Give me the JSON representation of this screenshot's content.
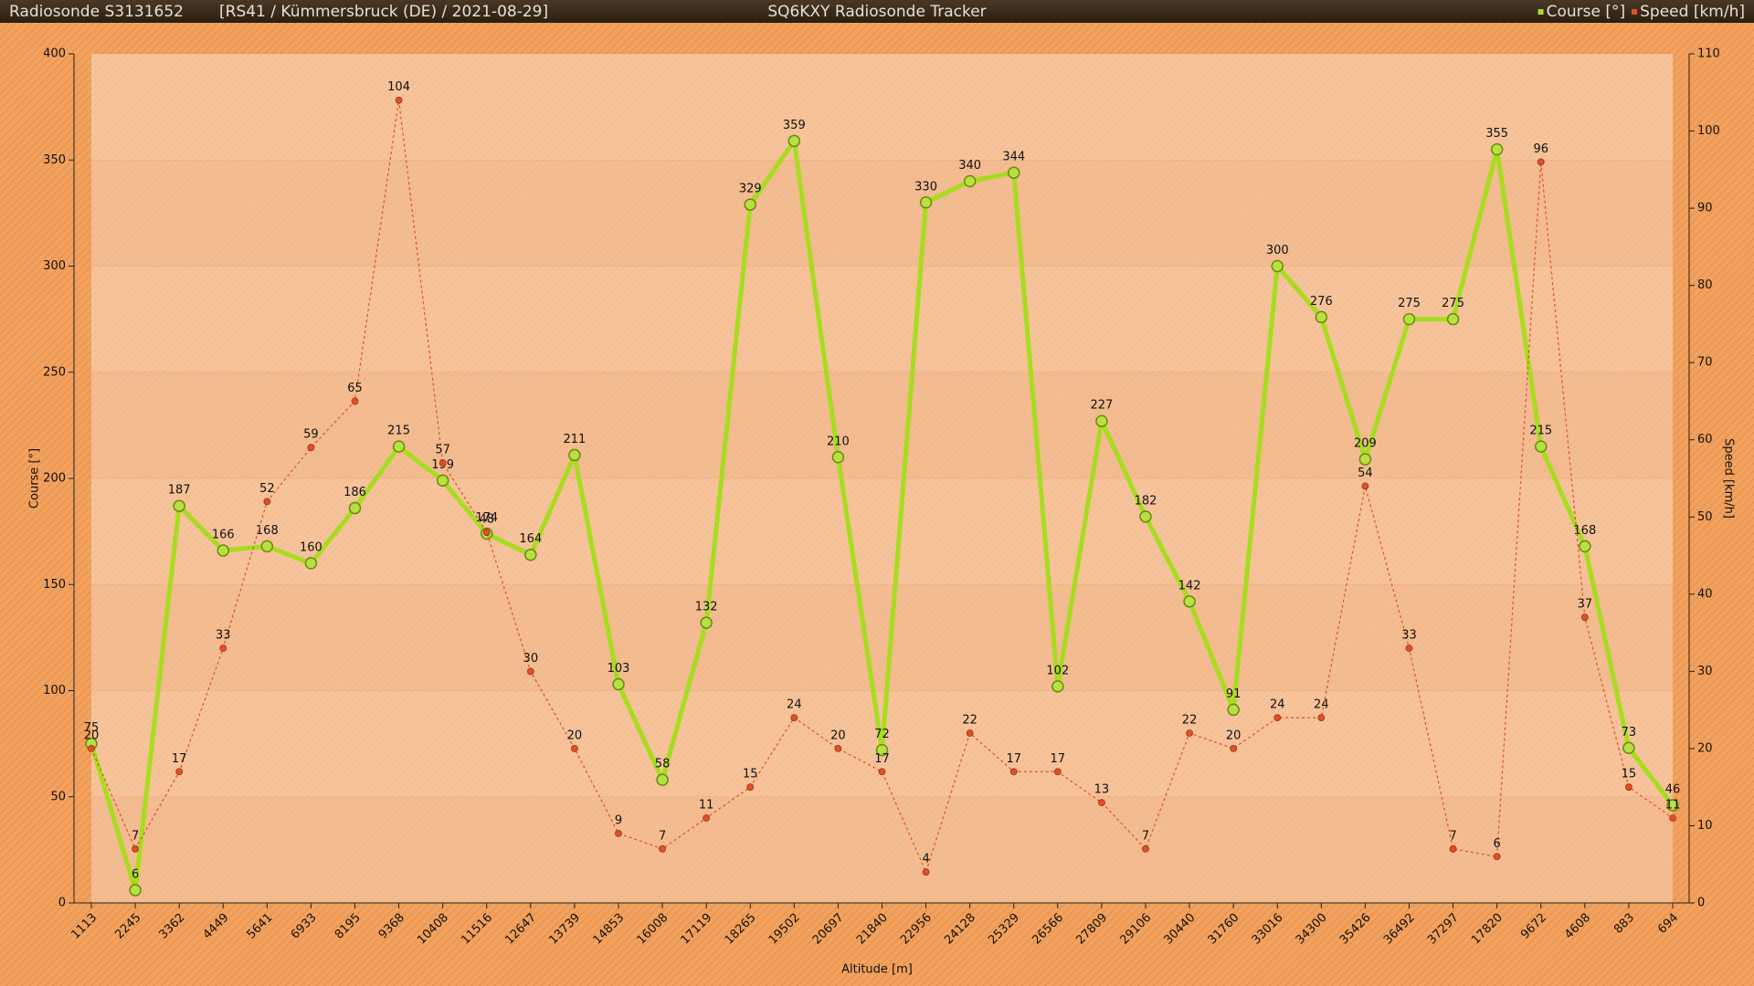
{
  "chart_data": {
    "type": "line",
    "title": "SQ6KXY Radiosonde Tracker",
    "subtitle": "Radiosonde S3131652",
    "caption": "[RS41 / Kümmersbruck (DE) / 2021-08-29]",
    "x_label": "Altitude [m]",
    "y_label": "Course [°]",
    "y2_label": "Speed [km/h]",
    "categories": [
      1113,
      2245,
      3362,
      4449,
      5641,
      6933,
      8195,
      9368,
      10408,
      11516,
      12647,
      13739,
      14853,
      16008,
      17119,
      18265,
      19502,
      20697,
      21840,
      22956,
      24128,
      25329,
      26566,
      27809,
      29106,
      30440,
      31760,
      33016,
      34300,
      35426,
      36492,
      37297,
      17820,
      9672,
      4608,
      883,
      694
    ],
    "series": [
      {
        "name": "Course [°]",
        "color": "#a8dc1e",
        "line_style": "solid",
        "values": [
          75,
          6,
          187,
          166,
          168,
          160,
          186,
          215,
          199,
          174,
          164,
          211,
          103,
          58,
          132,
          329,
          359,
          210,
          72,
          330,
          340,
          344,
          102,
          227,
          182,
          142,
          91,
          300,
          276,
          209,
          275,
          275,
          355,
          215,
          168,
          73,
          46
        ]
      },
      {
        "name": "Speed [km/h]",
        "color": "#e0502a",
        "line_style": "dashed",
        "axis": "y2",
        "values": [
          20,
          7,
          17,
          33,
          52,
          59,
          65,
          104,
          57,
          48,
          30,
          20,
          9,
          7,
          11,
          15,
          24,
          20,
          17,
          4,
          22,
          17,
          17,
          13,
          7,
          22,
          20,
          24,
          24,
          54,
          33,
          7,
          6,
          96,
          37,
          15,
          11
        ]
      }
    ],
    "ylim": [
      0,
      400
    ],
    "yticks": [
      0,
      50,
      100,
      150,
      200,
      250,
      300,
      350,
      400
    ],
    "y2lim": [
      0,
      110
    ],
    "y2ticks": [
      0,
      10,
      20,
      30,
      40,
      50,
      60,
      70,
      80,
      90,
      100,
      110
    ],
    "grid": true,
    "legend": "top-right"
  }
}
